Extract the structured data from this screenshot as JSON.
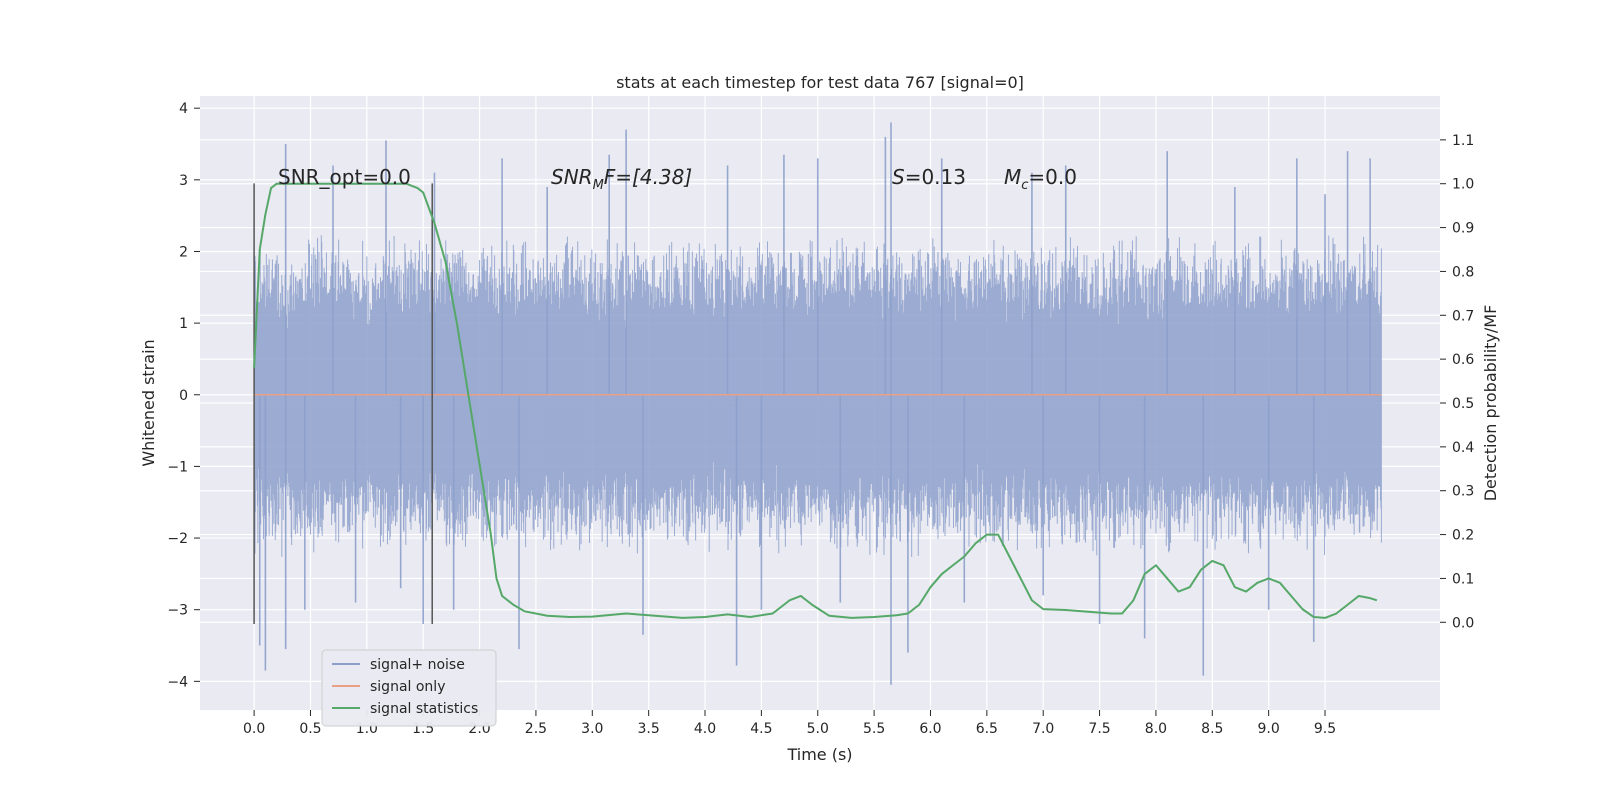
{
  "chart_data": {
    "type": "line",
    "title": "stats at each timestep for test data 767 [signal=0]",
    "xlabel": "Time (s)",
    "ylabel_left": "Whitened strain",
    "ylabel_right": "Detection probability/MF",
    "xlim": [
      -0.48,
      10.52
    ],
    "ylim_left": [
      -4.4,
      4.17
    ],
    "ylim_right": [
      -0.2,
      1.2
    ],
    "x_ticks": [
      "0.0",
      "0.5",
      "1.0",
      "1.5",
      "2.0",
      "2.5",
      "3.0",
      "3.5",
      "4.0",
      "4.5",
      "5.0",
      "5.5",
      "6.0",
      "6.5",
      "7.0",
      "7.5",
      "8.0",
      "8.5",
      "9.0",
      "9.5"
    ],
    "y_left_ticks": [
      4,
      3,
      2,
      1,
      0,
      -1,
      -2,
      -3,
      -4
    ],
    "y_left_tick_labels": [
      "4",
      "3",
      "2",
      "1",
      "0",
      "−1",
      "−2",
      "−3",
      "−4"
    ],
    "y_right_ticks": [
      "1.1",
      "1.0",
      "0.9",
      "0.8",
      "0.7",
      "0.6",
      "0.5",
      "0.4",
      "0.3",
      "0.2",
      "0.1",
      "0.0"
    ],
    "grid": true,
    "legend": {
      "placement": "lower-left",
      "entries": [
        {
          "label": "signal+ noise",
          "color": "#8da0cb"
        },
        {
          "label": "signal only",
          "color": "#e8a087"
        },
        {
          "label": "signal statistics",
          "color": "#55a868"
        }
      ]
    },
    "annotations": {
      "snr_opt": "SNR_opt=0.0",
      "snr_mf_italic": "SNR",
      "snr_mf_sub": "M",
      "snr_mf_rest": "F=[4.38]",
      "s_italic": "S",
      "s_rest": "=0.13",
      "mc_italic": "M",
      "mc_sub": "c",
      "mc_rest": "=0.0"
    },
    "markers": [
      {
        "x": 0.0,
        "y_range": [
          -3.2,
          2.95
        ]
      },
      {
        "x": 1.58,
        "y_range": [
          -3.2,
          2.95
        ]
      }
    ],
    "series": [
      {
        "name": "signal+ noise",
        "axis": "left",
        "kind": "noise-band",
        "x_range": [
          0.0,
          10.0
        ],
        "typical_amplitude": 1.8,
        "spikes": [
          {
            "x": 0.05,
            "y": -3.5
          },
          {
            "x": 0.1,
            "y": -3.85
          },
          {
            "x": 0.28,
            "y": 3.5
          },
          {
            "x": 0.28,
            "y": -3.55
          },
          {
            "x": 0.45,
            "y": -3.0
          },
          {
            "x": 0.7,
            "y": 3.2
          },
          {
            "x": 0.9,
            "y": -2.9
          },
          {
            "x": 1.17,
            "y": 3.55
          },
          {
            "x": 1.3,
            "y": -2.7
          },
          {
            "x": 1.5,
            "y": -3.2
          },
          {
            "x": 1.6,
            "y": 3.1
          },
          {
            "x": 1.77,
            "y": -3.0
          },
          {
            "x": 2.2,
            "y": 3.3
          },
          {
            "x": 2.35,
            "y": -3.55
          },
          {
            "x": 2.6,
            "y": 2.9
          },
          {
            "x": 3.15,
            "y": 3.35
          },
          {
            "x": 3.3,
            "y": 3.7
          },
          {
            "x": 3.45,
            "y": -3.35
          },
          {
            "x": 4.2,
            "y": 3.2
          },
          {
            "x": 4.28,
            "y": -3.78
          },
          {
            "x": 4.5,
            "y": -3.0
          },
          {
            "x": 4.7,
            "y": 3.35
          },
          {
            "x": 5.0,
            "y": 3.3
          },
          {
            "x": 5.2,
            "y": -2.9
          },
          {
            "x": 5.6,
            "y": 3.6
          },
          {
            "x": 5.65,
            "y": 3.8
          },
          {
            "x": 5.65,
            "y": -4.05
          },
          {
            "x": 5.8,
            "y": -3.6
          },
          {
            "x": 6.1,
            "y": 3.3
          },
          {
            "x": 6.3,
            "y": -2.9
          },
          {
            "x": 6.9,
            "y": 3.1
          },
          {
            "x": 7.0,
            "y": -2.8
          },
          {
            "x": 7.2,
            "y": 3.2
          },
          {
            "x": 7.5,
            "y": -3.2
          },
          {
            "x": 7.9,
            "y": -3.4
          },
          {
            "x": 8.1,
            "y": 3.4
          },
          {
            "x": 8.42,
            "y": -3.92
          },
          {
            "x": 8.7,
            "y": 2.9
          },
          {
            "x": 9.0,
            "y": -3.0
          },
          {
            "x": 9.25,
            "y": 3.3
          },
          {
            "x": 9.4,
            "y": -3.45
          },
          {
            "x": 9.5,
            "y": 2.8
          },
          {
            "x": 9.7,
            "y": 3.4
          },
          {
            "x": 9.9,
            "y": 3.3
          }
        ]
      },
      {
        "name": "signal only",
        "axis": "left",
        "x": [
          0.0,
          10.0
        ],
        "y": [
          0.0,
          0.0
        ]
      },
      {
        "name": "signal statistics",
        "axis": "right",
        "x": [
          0.0,
          0.05,
          0.1,
          0.15,
          0.2,
          0.3,
          0.5,
          0.8,
          1.0,
          1.2,
          1.35,
          1.45,
          1.5,
          1.6,
          1.7,
          1.8,
          1.9,
          2.0,
          2.1,
          2.15,
          2.2,
          2.3,
          2.4,
          2.6,
          2.8,
          3.0,
          3.3,
          3.5,
          3.8,
          4.0,
          4.2,
          4.4,
          4.6,
          4.75,
          4.85,
          4.95,
          5.1,
          5.3,
          5.5,
          5.7,
          5.8,
          5.9,
          6.0,
          6.1,
          6.2,
          6.3,
          6.4,
          6.5,
          6.6,
          6.7,
          6.8,
          6.9,
          7.0,
          7.2,
          7.4,
          7.6,
          7.7,
          7.8,
          7.9,
          8.0,
          8.1,
          8.2,
          8.3,
          8.4,
          8.5,
          8.6,
          8.7,
          8.8,
          8.9,
          9.0,
          9.1,
          9.2,
          9.3,
          9.4,
          9.5,
          9.6,
          9.7,
          9.8,
          9.9,
          9.96
        ],
        "y": [
          0.58,
          0.85,
          0.93,
          0.99,
          1.0,
          1.0,
          1.0,
          1.0,
          1.0,
          1.0,
          1.0,
          0.99,
          0.98,
          0.91,
          0.82,
          0.68,
          0.52,
          0.36,
          0.2,
          0.1,
          0.06,
          0.04,
          0.025,
          0.015,
          0.012,
          0.013,
          0.02,
          0.016,
          0.01,
          0.012,
          0.018,
          0.012,
          0.02,
          0.05,
          0.06,
          0.04,
          0.015,
          0.01,
          0.012,
          0.016,
          0.02,
          0.04,
          0.08,
          0.11,
          0.13,
          0.15,
          0.18,
          0.2,
          0.2,
          0.15,
          0.1,
          0.05,
          0.03,
          0.028,
          0.024,
          0.02,
          0.02,
          0.05,
          0.11,
          0.13,
          0.1,
          0.07,
          0.08,
          0.12,
          0.14,
          0.13,
          0.08,
          0.07,
          0.09,
          0.1,
          0.09,
          0.06,
          0.03,
          0.012,
          0.01,
          0.02,
          0.04,
          0.06,
          0.055,
          0.05
        ]
      }
    ]
  }
}
